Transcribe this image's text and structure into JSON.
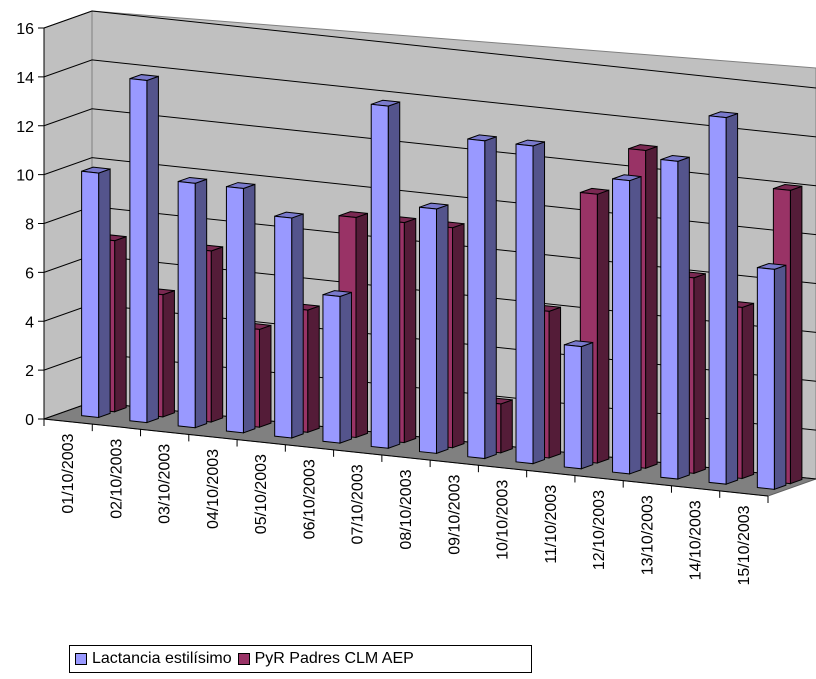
{
  "chart_data": {
    "type": "bar",
    "title": "",
    "xlabel": "",
    "ylabel": "",
    "ylim": [
      0,
      16
    ],
    "yticks": [
      "0",
      "2",
      "4",
      "6",
      "8",
      "10",
      "12",
      "14",
      "16"
    ],
    "categories": [
      "01/10/2003",
      "02/10/2003",
      "03/10/2003",
      "04/10/2003",
      "05/10/2003",
      "06/10/2003",
      "07/10/2003",
      "08/10/2003",
      "09/10/2003",
      "10/10/2003",
      "11/10/2003",
      "12/10/2003",
      "13/10/2003",
      "14/10/2003",
      "15/10/2003"
    ],
    "series": [
      {
        "name": "Lactancia estilísimo",
        "color": "#9999ff",
        "values": [
          10,
          14,
          10,
          10,
          9,
          6,
          14,
          10,
          13,
          13,
          5,
          12,
          13,
          15,
          9
        ]
      },
      {
        "name": "PyR Padres CLM AEP",
        "color": "#993366",
        "values": [
          7,
          5,
          7,
          4,
          5,
          9,
          9,
          9,
          2,
          6,
          11,
          13,
          8,
          7,
          12
        ]
      }
    ],
    "grid": true,
    "legend_position": "bottom-left",
    "style": "3d-clustered-column"
  }
}
